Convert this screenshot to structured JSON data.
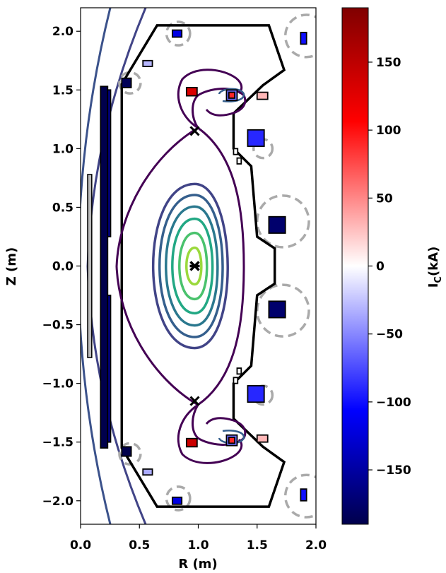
{
  "chart_data": {
    "type": "equilibrium-contour",
    "xlabel": "R (m)",
    "ylabel": "Z (m)",
    "xlim": [
      0.0,
      2.0
    ],
    "ylim": [
      -2.2,
      2.2
    ],
    "x_ticks": [
      "0.0",
      "0.5",
      "1.0",
      "1.5",
      "2.0"
    ],
    "y_ticks": [
      "−2.0",
      "−1.5",
      "−1.0",
      "−0.5",
      "0.0",
      "0.5",
      "1.0",
      "1.5",
      "2.0"
    ],
    "colorbar": {
      "label": "I",
      "label_sub": "C",
      "label_suffix": "(kA)",
      "range": [
        -190,
        190
      ],
      "ticks": [
        "150",
        "100",
        "50",
        "0",
        "−50",
        "−100",
        "−150"
      ],
      "cmap": "seismic",
      "colors": {
        "low": "#00004c",
        "mid": "#ffffff",
        "high": "#800000"
      }
    },
    "axis_point": {
      "R": 0.97,
      "Z": 0.0
    },
    "x_points": [
      {
        "R": 0.97,
        "Z": 1.15
      },
      {
        "R": 0.97,
        "Z": -1.15
      }
    ],
    "flux_surfaces": [
      {
        "R0": 0.97,
        "a": 0.065,
        "k": 2.4,
        "color": "#9bd93c"
      },
      {
        "R0": 0.97,
        "a": 0.12,
        "k": 2.35,
        "color": "#4ac26d"
      },
      {
        "R0": 0.97,
        "a": 0.175,
        "k": 2.3,
        "color": "#22a884"
      },
      {
        "R0": 0.97,
        "a": 0.225,
        "k": 2.25,
        "color": "#2a788e"
      },
      {
        "R0": 0.97,
        "a": 0.275,
        "k": 2.2,
        "color": "#355f8d"
      },
      {
        "R0": 0.97,
        "a": 0.325,
        "k": 2.15,
        "color": "#414487"
      }
    ],
    "separatrix_color": "#440154",
    "limiter": [
      [
        0.35,
        1.35
      ],
      [
        0.35,
        1.55
      ],
      [
        0.65,
        2.05
      ],
      [
        1.6,
        2.05
      ],
      [
        1.73,
        1.67
      ],
      [
        1.55,
        1.54
      ],
      [
        1.3,
        1.3
      ],
      [
        1.3,
        1.0
      ],
      [
        1.45,
        0.85
      ],
      [
        1.5,
        0.25
      ],
      [
        1.65,
        0.15
      ],
      [
        1.65,
        -0.15
      ],
      [
        1.5,
        -0.25
      ],
      [
        1.45,
        -0.85
      ],
      [
        1.3,
        -1.0
      ],
      [
        1.3,
        -1.3
      ],
      [
        1.55,
        -1.54
      ],
      [
        1.73,
        -1.67
      ],
      [
        1.6,
        -2.05
      ],
      [
        0.65,
        -2.05
      ],
      [
        0.35,
        -1.55
      ],
      [
        0.35,
        -1.35
      ]
    ],
    "central_stack": [
      {
        "R": 0.06,
        "Z": -0.78,
        "w": 0.035,
        "h": 1.56,
        "I": 0,
        "edge": "#000000",
        "fill": "#bbbbbb"
      }
    ],
    "coils": [
      {
        "R": 0.17,
        "Z": -1.55,
        "w": 0.06,
        "h": 3.08,
        "I": -190
      },
      {
        "R": 0.23,
        "Z": 0.25,
        "w": 0.025,
        "h": 1.25,
        "I": -160
      },
      {
        "R": 0.23,
        "Z": -1.5,
        "w": 0.025,
        "h": 1.25,
        "I": -160
      },
      {
        "R": 0.35,
        "Z": 1.52,
        "w": 0.08,
        "h": 0.08,
        "I": -185
      },
      {
        "R": 0.35,
        "Z": -1.62,
        "w": 0.08,
        "h": 0.08,
        "I": -190
      },
      {
        "R": 0.53,
        "Z": 1.7,
        "w": 0.08,
        "h": 0.05,
        "I": -30
      },
      {
        "R": 0.53,
        "Z": -1.78,
        "w": 0.08,
        "h": 0.05,
        "I": -35
      },
      {
        "R": 0.78,
        "Z": 1.95,
        "w": 0.08,
        "h": 0.06,
        "I": -120
      },
      {
        "R": 0.78,
        "Z": -2.03,
        "w": 0.08,
        "h": 0.06,
        "I": -120
      },
      {
        "R": 0.9,
        "Z": 1.45,
        "w": 0.09,
        "h": 0.07,
        "I": 130
      },
      {
        "R": 0.9,
        "Z": -1.54,
        "w": 0.09,
        "h": 0.07,
        "I": 140
      },
      {
        "R": 1.24,
        "Z": 1.41,
        "w": 0.09,
        "h": 0.09,
        "I": -60
      },
      {
        "R": 1.24,
        "Z": -1.53,
        "w": 0.09,
        "h": 0.09,
        "I": -60
      },
      {
        "R": 1.26,
        "Z": 1.43,
        "w": 0.05,
        "h": 0.05,
        "I": 90
      },
      {
        "R": 1.26,
        "Z": -1.51,
        "w": 0.05,
        "h": 0.05,
        "I": 90
      },
      {
        "R": 1.5,
        "Z": 1.42,
        "w": 0.09,
        "h": 0.06,
        "I": 30
      },
      {
        "R": 1.5,
        "Z": -1.5,
        "w": 0.09,
        "h": 0.06,
        "I": 30
      },
      {
        "R": 1.42,
        "Z": 1.02,
        "w": 0.14,
        "h": 0.14,
        "I": -90
      },
      {
        "R": 1.42,
        "Z": -1.16,
        "w": 0.14,
        "h": 0.14,
        "I": -90
      },
      {
        "R": 1.3,
        "Z": 0.95,
        "w": 0.035,
        "h": 0.05,
        "I": 0
      },
      {
        "R": 1.33,
        "Z": 0.87,
        "w": 0.035,
        "h": 0.05,
        "I": 0
      },
      {
        "R": 1.3,
        "Z": -1.0,
        "w": 0.035,
        "h": 0.05,
        "I": 0
      },
      {
        "R": 1.33,
        "Z": -0.92,
        "w": 0.035,
        "h": 0.05,
        "I": 0
      },
      {
        "R": 1.6,
        "Z": 0.28,
        "w": 0.14,
        "h": 0.14,
        "I": -175
      },
      {
        "R": 1.6,
        "Z": -0.44,
        "w": 0.14,
        "h": 0.14,
        "I": -175
      },
      {
        "R": 1.87,
        "Z": 1.89,
        "w": 0.05,
        "h": 0.1,
        "I": -100
      },
      {
        "R": 1.87,
        "Z": -2.0,
        "w": 0.05,
        "h": 0.1,
        "I": -100
      }
    ],
    "dashed_circles": [
      {
        "R": 0.83,
        "Z": 1.98,
        "r": 0.1
      },
      {
        "R": 0.83,
        "Z": -1.98,
        "r": 0.1
      },
      {
        "R": 0.42,
        "Z": 1.56,
        "r": 0.09
      },
      {
        "R": 0.42,
        "Z": -1.6,
        "r": 0.09
      },
      {
        "R": 1.92,
        "Z": 1.96,
        "r": 0.18
      },
      {
        "R": 1.92,
        "Z": -1.96,
        "r": 0.18
      },
      {
        "R": 1.55,
        "Z": 1.0,
        "r": 0.08
      },
      {
        "R": 1.55,
        "Z": -1.1,
        "r": 0.08
      },
      {
        "R": 1.72,
        "Z": 0.38,
        "r": 0.22
      },
      {
        "R": 1.72,
        "Z": -0.38,
        "r": 0.22
      }
    ]
  }
}
